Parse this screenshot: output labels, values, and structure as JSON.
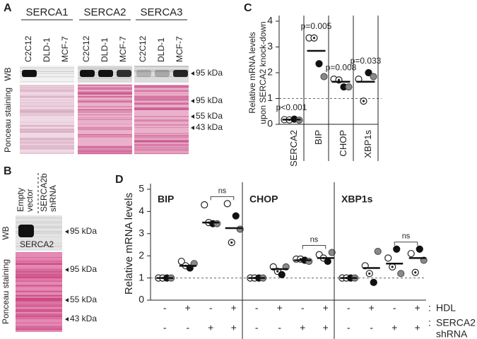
{
  "figure": {
    "panel_a": {
      "letter": "A",
      "groups": [
        "SERCA1",
        "SERCA2",
        "SERCA3"
      ],
      "lanes": [
        "C2C12",
        "DLD-1",
        "MCF-7"
      ],
      "wb_label": "WB",
      "ponceau_label": "Ponceau staining",
      "wb_marker": "95 kDa",
      "ponceau_markers": [
        "95 kDa",
        "55 kDa",
        "43 kDa"
      ]
    },
    "panel_b": {
      "letter": "B",
      "lanes": [
        [
          "Empty",
          "vector"
        ],
        [
          "SERCA2b",
          "shRNA"
        ]
      ],
      "wb_label": "WB",
      "ponceau_label": "Ponceau staining",
      "band_label": "SERCA2",
      "wb_marker": "95 kDa",
      "ponceau_markers": [
        "95 kDa",
        "55 kDa",
        "43 kDa"
      ]
    }
  },
  "chart_data": [
    {
      "type": "dotplot",
      "letter": "C",
      "ylabel": [
        "Relative mRNA levels",
        "upon SERCA2 knock-down"
      ],
      "categories": [
        "SERCA2",
        "BIP",
        "CHOP",
        "XBP1s"
      ],
      "ylim": [
        0,
        4
      ],
      "yticks": [
        0,
        1,
        2,
        3,
        4
      ],
      "reference_line": 1,
      "p_labels": [
        "p<0.001",
        "p=0.005",
        "p=0.008",
        "p=0.033"
      ],
      "means": [
        0.18,
        2.85,
        1.65,
        1.65
      ],
      "series": [
        {
          "marker": "open",
          "values": [
            0.18,
            3.35,
            1.75,
            1.75
          ]
        },
        {
          "marker": "dot",
          "values": [
            0.17,
            3.35,
            1.72,
            0.9
          ]
        },
        {
          "marker": "filled",
          "values": [
            0.2,
            2.35,
            1.45,
            2.0
          ]
        },
        {
          "marker": "gray",
          "values": [
            0.16,
            1.85,
            1.45,
            1.85
          ]
        }
      ]
    },
    {
      "type": "dotplot-panels",
      "letter": "D",
      "ylabel": "Relative mRNA levels",
      "ylim": [
        0,
        5
      ],
      "yticks": [
        0,
        1,
        2,
        3,
        4,
        5
      ],
      "reference_line": 1,
      "separator": ":",
      "conditions": [
        {
          "name_lines": [
            "HDL"
          ],
          "signs": [
            "-",
            "+",
            "-",
            "+"
          ]
        },
        {
          "name_lines": [
            "SERCA2",
            "shRNA"
          ],
          "signs": [
            "-",
            "-",
            "+",
            "+"
          ]
        }
      ],
      "panels": [
        {
          "title": "BIP",
          "ns_label": "ns",
          "means": [
            1,
            1.55,
            3.5,
            3.25
          ],
          "series": [
            {
              "marker": "open",
              "values": [
                1,
                1.75,
                4.3,
                4.35
              ]
            },
            {
              "marker": "dot",
              "values": [
                1,
                1.55,
                3.5,
                2.6
              ]
            },
            {
              "marker": "filled",
              "values": [
                1,
                1.45,
                3.45,
                3.8
              ]
            },
            {
              "marker": "gray",
              "values": [
                1,
                1.65,
                3.45,
                3.2
              ]
            }
          ]
        },
        {
          "title": "CHOP",
          "ns_label": "ns",
          "means": [
            1,
            1.4,
            1.8,
            1.9
          ],
          "series": [
            {
              "marker": "open",
              "values": [
                1,
                1.5,
                1.85,
                2.05
              ]
            },
            {
              "marker": "dot",
              "values": [
                1,
                1.3,
                1.85,
                1.9
              ]
            },
            {
              "marker": "filled",
              "values": [
                1,
                1.15,
                1.8,
                1.75
              ]
            },
            {
              "marker": "gray",
              "values": [
                1,
                1.5,
                1.75,
                2.15
              ]
            }
          ]
        },
        {
          "title": "XBP1s",
          "ns_label": "ns",
          "means": [
            1,
            1.45,
            1.65,
            1.9
          ],
          "series": [
            {
              "marker": "open",
              "values": [
                1,
                1.55,
                1.9,
                2.1
              ]
            },
            {
              "marker": "dot",
              "values": [
                1,
                1.2,
                1.5,
                1.25
              ]
            },
            {
              "marker": "filled",
              "values": [
                1,
                0.8,
                2.3,
                2.3
              ]
            },
            {
              "marker": "gray",
              "values": [
                1,
                2.2,
                1.2,
                1.8
              ]
            }
          ]
        }
      ]
    }
  ]
}
